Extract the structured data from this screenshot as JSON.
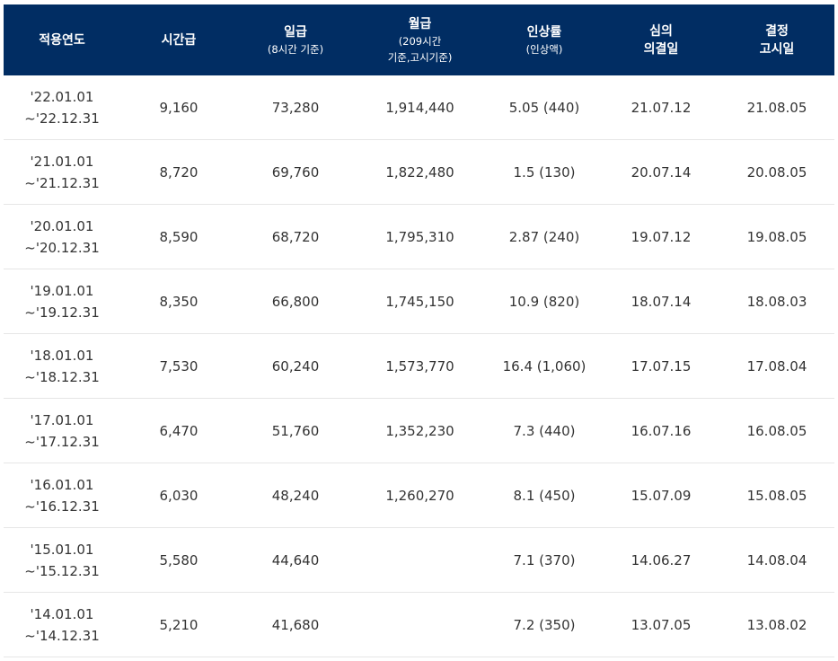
{
  "header": {
    "col1": "적용연도",
    "col2": "시간급",
    "col3": "일급",
    "col3_sub": "(8시간 기준)",
    "col4": "월급",
    "col4_sub1": "(209시간",
    "col4_sub2": "기준,고시기준)",
    "col5": "인상률",
    "col5_sub": "(인상액)",
    "col6_line1": "심의",
    "col6_line2": "의결일",
    "col7_line1": "결정",
    "col7_line2": "고시일"
  },
  "rows": [
    {
      "start": "'22.01.01",
      "end": "~'22.12.31",
      "hourly": "9,160",
      "daily": "73,280",
      "monthly": "1,914,440",
      "rate": "5.05 (440)",
      "decision": "21.07.12",
      "notice": "21.08.05"
    },
    {
      "start": "'21.01.01",
      "end": "~'21.12.31",
      "hourly": "8,720",
      "daily": "69,760",
      "monthly": "1,822,480",
      "rate": "1.5 (130)",
      "decision": "20.07.14",
      "notice": "20.08.05"
    },
    {
      "start": "'20.01.01",
      "end": "~'20.12.31",
      "hourly": "8,590",
      "daily": "68,720",
      "monthly": "1,795,310",
      "rate": "2.87 (240)",
      "decision": "19.07.12",
      "notice": "19.08.05"
    },
    {
      "start": "'19.01.01",
      "end": "~'19.12.31",
      "hourly": "8,350",
      "daily": "66,800",
      "monthly": "1,745,150",
      "rate": "10.9 (820)",
      "decision": "18.07.14",
      "notice": "18.08.03"
    },
    {
      "start": "'18.01.01",
      "end": "~'18.12.31",
      "hourly": "7,530",
      "daily": "60,240",
      "monthly": "1,573,770",
      "rate": "16.4 (1,060)",
      "decision": "17.07.15",
      "notice": "17.08.04"
    },
    {
      "start": "'17.01.01",
      "end": "~'17.12.31",
      "hourly": "6,470",
      "daily": "51,760",
      "monthly": "1,352,230",
      "rate": "7.3 (440)",
      "decision": "16.07.16",
      "notice": "16.08.05"
    },
    {
      "start": "'16.01.01",
      "end": "~'16.12.31",
      "hourly": "6,030",
      "daily": "48,240",
      "monthly": "1,260,270",
      "rate": "8.1 (450)",
      "decision": "15.07.09",
      "notice": "15.08.05"
    },
    {
      "start": "'15.01.01",
      "end": "~'15.12.31",
      "hourly": "5,580",
      "daily": "44,640",
      "monthly": "",
      "rate": "7.1 (370)",
      "decision": "14.06.27",
      "notice": "14.08.04"
    },
    {
      "start": "'14.01.01",
      "end": "~'14.12.31",
      "hourly": "5,210",
      "daily": "41,680",
      "monthly": "",
      "rate": "7.2 (350)",
      "decision": "13.07.05",
      "notice": "13.08.02"
    }
  ]
}
